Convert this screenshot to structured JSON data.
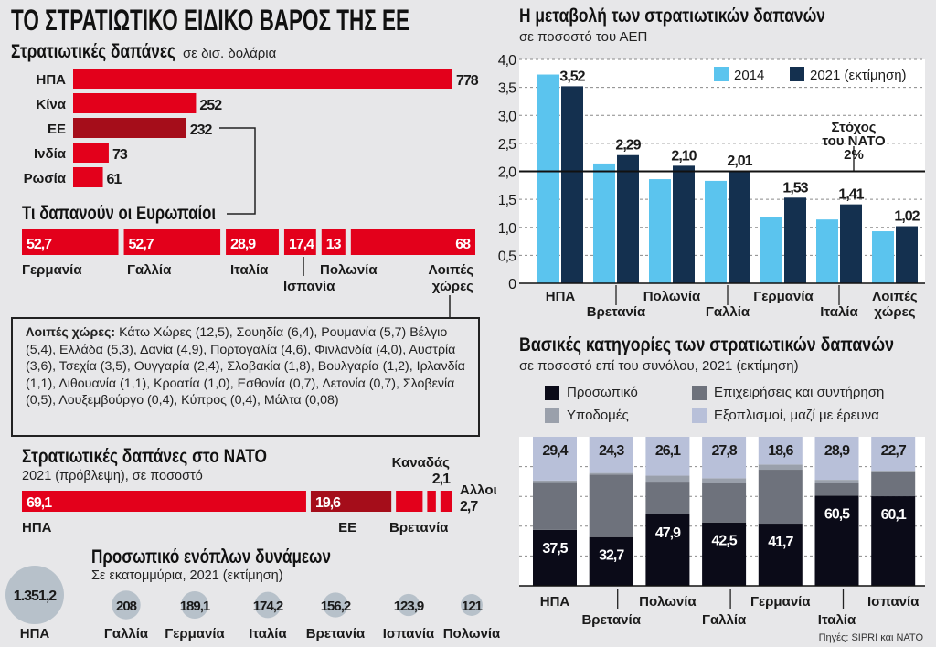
{
  "main_title": "ΤΟ ΣΤΡΑΤΙΩΤΙΚΟ ΕΙΔΙΚΟ ΒΑΡΟΣ ΤΗΣ ΕΕ",
  "colors": {
    "red": "#e3001b",
    "dark_red": "#a50d1a",
    "light_blue": "#5bc4ee",
    "navy": "#14304f",
    "personnel": "#0b0b18",
    "operations": "#6e727c",
    "infrastructure": "#9aa0ab",
    "equipment": "#b8c0d9",
    "bubble": "#b7c1ca",
    "background": "#e7e7e9"
  },
  "spending": {
    "title": "Στρατιωτικές δαπάνες",
    "unit": "σε δισ. δολάρια",
    "rows": [
      {
        "label": "ΗΠΑ",
        "value": 778,
        "display": "778"
      },
      {
        "label": "Κίνα",
        "value": 252,
        "display": "252"
      },
      {
        "label": "ΕΕ",
        "value": 232,
        "display": "232",
        "highlight": true
      },
      {
        "label": "Ινδία",
        "value": 73,
        "display": "73"
      },
      {
        "label": "Ρωσία",
        "value": 61,
        "display": "61"
      }
    ]
  },
  "europeans": {
    "title": "Τι δαπανούν οι Ευρωπαίοι",
    "segments": [
      {
        "label": "Γερμανία",
        "value": 52.7,
        "display": "52,7"
      },
      {
        "label": "Γαλλία",
        "value": 52.7,
        "display": "52,7"
      },
      {
        "label": "Ιταλία",
        "value": 28.9,
        "display": "28,9"
      },
      {
        "label": "Ισπανία",
        "value": 17.4,
        "display": "17,4"
      },
      {
        "label": "Πολωνία",
        "value": 13,
        "display": "13"
      },
      {
        "label": "Λοιπές",
        "label2": "χώρες",
        "value": 68,
        "display": "68"
      }
    ],
    "others_box": {
      "heading": "Λοιπές χώρες:",
      "text": "Κάτω Χώρες (12,5), Σουηδία (6,4), Ρουμανία (5,7) Βέλγιο (5,4), Ελλάδα (5,3), Δανία (4,9), Πορτογαλία (4,6), Φινλανδία (4,0), Αυστρία (3,6), Τσεχία (3,5), Ουγγαρία (2,4), Σλοβακία (1,8), Βουλγαρία (1,2), Ιρλανδία (1,1), Λιθουανία (1,1), Κροατία (1,0), Εσθονία (0,7), Λετονία (0,7), Σλοβενία (0,5), Λουξεμβούργο (0,4), Κύπρος (0,4), Μάλτα (0,08)"
    }
  },
  "nato": {
    "title": "Στρατιωτικές δαπάνες στο ΝΑΤΟ",
    "subtitle": "2021 (πρόβλεψη), σε ποσοστό",
    "segments": [
      {
        "label": "ΗΠΑ",
        "value": 69.1,
        "display": "69,1"
      },
      {
        "label": "ΕΕ",
        "value": 19.6,
        "display": "19,6",
        "highlight": true
      },
      {
        "label": "Βρετανία",
        "value": 6.5
      },
      {
        "label": "Καναδάς",
        "value": 2.1,
        "display": "2,1"
      },
      {
        "label": "Αλλοι",
        "value": 2.7,
        "display": "2,7"
      }
    ]
  },
  "personnel_forces": {
    "title": "Προσωπικό ενόπλων δυνάμεων",
    "subtitle": "Σε εκατομμύρια, 2021 (εκτίμηση)",
    "items": [
      {
        "label": "ΗΠΑ",
        "value": 1351.2,
        "display": "1.351,2"
      },
      {
        "label": "Γαλλία",
        "value": 208,
        "display": "208"
      },
      {
        "label": "Γερμανία",
        "value": 189.1,
        "display": "189,1"
      },
      {
        "label": "Ιταλία",
        "value": 174.2,
        "display": "174,2"
      },
      {
        "label": "Βρετανία",
        "value": 156.2,
        "display": "156,2"
      },
      {
        "label": "Ισπανία",
        "value": 123.9,
        "display": "123,9"
      },
      {
        "label": "Πολωνία",
        "value": 121,
        "display": "121"
      }
    ]
  },
  "chart_data": [
    {
      "type": "bar",
      "title": "Η μεταβολή των στρατιωτικών δαπανών",
      "subtitle": "σε ποσοστό του ΑΕΠ",
      "categories": [
        "ΗΠΑ",
        "Βρετανία",
        "Πολωνία",
        "Γαλλία",
        "Γερμανία",
        "Ιταλία",
        "Λοιπές χώρες"
      ],
      "category_lines": [
        [
          "ΗΠΑ"
        ],
        [
          "Βρετανία"
        ],
        [
          "Πολωνία"
        ],
        [
          "Γαλλία"
        ],
        [
          "Γερμανία"
        ],
        [
          "Ιταλία"
        ],
        [
          "Λοιπές",
          "χώρες"
        ]
      ],
      "series": [
        {
          "name": "2014",
          "values": [
            3.73,
            2.14,
            1.86,
            1.83,
            1.19,
            1.14,
            0.93
          ]
        },
        {
          "name": "2021 (εκτίμηση)",
          "values": [
            3.52,
            2.29,
            2.1,
            2.01,
            1.53,
            1.41,
            1.02
          ],
          "labels": [
            "3,52",
            "2,29",
            "2,10",
            "2,01",
            "1,53",
            "1,41",
            "1,02"
          ]
        }
      ],
      "ylim": [
        0,
        4.0
      ],
      "yticks": [
        "0",
        "0,5",
        "1,0",
        "1,5",
        "2,0",
        "2,5",
        "3,0",
        "3,5",
        "4,0"
      ],
      "grid": true,
      "legend": "top-right",
      "reference_line": {
        "value": 2.0,
        "label_lines": [
          "Στόχος",
          "του ΝΑΤΟ",
          "2%"
        ]
      }
    },
    {
      "type": "bar",
      "stacked": true,
      "title": "Βασικές κατηγορίες των στρατιωτικών δαπανών",
      "subtitle": "σε ποσοστό επί του συνόλου, 2021 (εκτίμηση)",
      "categories": [
        "ΗΠΑ",
        "Βρετανία",
        "Πολωνία",
        "Γαλλία",
        "Γερμανία",
        "Ιταλία",
        "Ισπανία"
      ],
      "series": [
        {
          "name": "Προσωπικό",
          "values": [
            37.5,
            32.7,
            47.9,
            42.5,
            41.7,
            60.5,
            60.1
          ],
          "labels": [
            "37,5",
            "32,7",
            "47,9",
            "42,5",
            "41,7",
            "60,5",
            "60,1"
          ]
        },
        {
          "name": "Επιχειρήσεις και συντήρηση",
          "values": [
            32.1,
            42.0,
            22.0,
            26.7,
            36.2,
            8.6,
            16.7
          ]
        },
        {
          "name": "Υποδομές",
          "values": [
            1.0,
            1.0,
            4.0,
            3.0,
            3.5,
            2.0,
            0.5
          ]
        },
        {
          "name": "Εξοπλισμοί, μαζί με έρευνα",
          "values": [
            29.4,
            24.3,
            26.1,
            27.8,
            18.6,
            28.9,
            22.7
          ],
          "labels": [
            "29,4",
            "24,3",
            "26,1",
            "27,8",
            "18,6",
            "28,9",
            "22,7"
          ]
        }
      ],
      "ylim": [
        0,
        100
      ],
      "grid": true,
      "legend": "top"
    }
  ],
  "source": "Πηγές: SIPRI και ΝΑΤΟ"
}
